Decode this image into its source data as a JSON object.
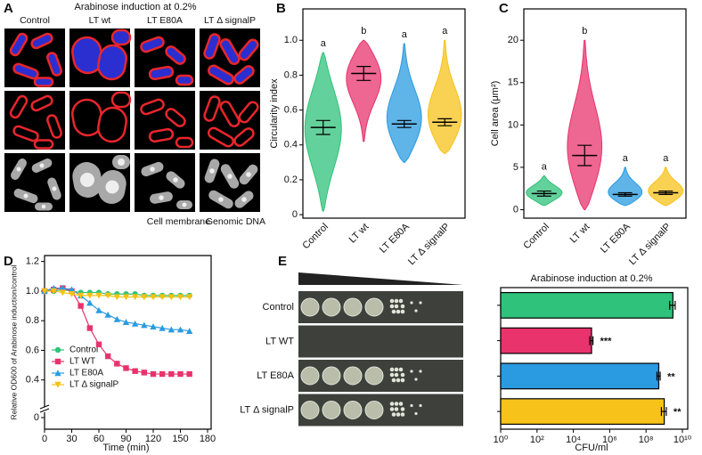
{
  "panel_labels": [
    "A",
    "B",
    "C",
    "D",
    "E"
  ],
  "figure_a": {
    "title": "Arabinose induction at 0.2%",
    "columns": [
      "Control",
      "LT wt",
      "LT E80A",
      "LT Δ signalP"
    ],
    "legend": [
      {
        "name": "Cell membrane",
        "color": "#e8262c"
      },
      {
        "name": "Genomic DNA",
        "color": "#2b2fd0"
      }
    ]
  },
  "chart_data": [
    {
      "type": "violin",
      "y_label": "Circularity index",
      "categories": [
        "Control",
        "LT wt",
        "LT E80A",
        "LT Δ signalP"
      ],
      "colors": [
        "#2fc27a",
        "#e8336d",
        "#2a9be0",
        "#f7c21a"
      ],
      "values": [
        0.5,
        0.81,
        0.52,
        0.53
      ],
      "errors": [
        0.04,
        0.04,
        0.02,
        0.02
      ],
      "min": [
        0.02,
        0.42,
        0.3,
        0.35
      ],
      "max": [
        0.93,
        1.0,
        0.98,
        1.0
      ],
      "letters": [
        "a",
        "b",
        "a",
        "a"
      ],
      "ylim": [
        -0.02,
        1.18
      ],
      "yticks": [
        0,
        0.2,
        0.4,
        0.6,
        0.8,
        {
          "value": 1,
          "label": "1.0"
        }
      ]
    },
    {
      "type": "violin",
      "y_label": "Cell area (μm²)",
      "categories": [
        "Control",
        "LT wt",
        "LT E80A",
        "LT Δ signalP"
      ],
      "colors": [
        "#2fc27a",
        "#e8336d",
        "#2a9be0",
        "#f7c21a"
      ],
      "values": [
        1.9,
        6.4,
        1.8,
        2.0
      ],
      "errors": [
        0.3,
        1.2,
        0.2,
        0.2
      ],
      "min": [
        0.5,
        0,
        0.5,
        0.5
      ],
      "max": [
        4,
        20,
        5,
        5
      ],
      "letters": [
        "a",
        "b",
        "a",
        "a"
      ],
      "ylim": [
        -1,
        23.7
      ],
      "yticks": [
        0,
        5,
        10,
        15,
        20
      ]
    },
    {
      "type": "line",
      "x_label": "Time (min)",
      "y_label": "Relative OD600 of Arabinose induction/control",
      "x": [
        0,
        10,
        20,
        30,
        40,
        50,
        60,
        70,
        80,
        90,
        100,
        110,
        120,
        130,
        140,
        150,
        160
      ],
      "series": [
        {
          "name": "Control",
          "color": "#2fc27a",
          "marker": "circle",
          "values": [
            1.0,
            1.0,
            1.01,
            1.0,
            0.99,
            0.99,
            0.99,
            0.98,
            0.98,
            0.98,
            0.98,
            0.97,
            0.97,
            0.97,
            0.97,
            0.97,
            0.97
          ]
        },
        {
          "name": "LT WT",
          "color": "#e8336d",
          "marker": "square",
          "values": [
            1.0,
            1.01,
            1.02,
            1.0,
            0.9,
            0.75,
            0.64,
            0.56,
            0.51,
            0.48,
            0.46,
            0.45,
            0.44,
            0.44,
            0.44,
            0.44,
            0.44
          ]
        },
        {
          "name": "LT E80A",
          "color": "#2a9be0",
          "marker": "triangle",
          "values": [
            1.0,
            1.02,
            1.02,
            1.01,
            0.97,
            0.92,
            0.87,
            0.84,
            0.81,
            0.79,
            0.78,
            0.77,
            0.76,
            0.75,
            0.74,
            0.74,
            0.73
          ]
        },
        {
          "name": "LT Δ signalP",
          "color": "#f5c211",
          "marker": "triangle-down",
          "values": [
            1.0,
            1.0,
            0.99,
            0.98,
            0.97,
            0.97,
            0.97,
            0.97,
            0.96,
            0.96,
            0.96,
            0.96,
            0.96,
            0.96,
            0.96,
            0.96,
            0.96
          ]
        }
      ],
      "xlim": [
        0,
        180
      ],
      "xticks": [
        0,
        30,
        60,
        90,
        120,
        150,
        180
      ],
      "ylim": [
        0.23,
        1.24
      ],
      "yticks": [
        0,
        0.4,
        0.6,
        0.8,
        {
          "value": 1,
          "label": "1.0"
        },
        1.2
      ],
      "y_break": true,
      "legend": "lower-left"
    },
    {
      "type": "bar",
      "orientation": "horizontal",
      "title": "Arabinose induction at 0.2%",
      "x_label": "CFU/ml",
      "categories": [
        "Control",
        "LT WT",
        "LT E80A",
        "LT Δ signalP"
      ],
      "colors": [
        "#2fc27a",
        "#e8336d",
        "#2a9be0",
        "#f7c21a"
      ],
      "values": [
        3000000000,
        100000,
        500000000,
        1000000000
      ],
      "errors": [
        1000000000,
        20000,
        100000000,
        300000000
      ],
      "annotations": [
        null,
        "***",
        "**",
        "**"
      ],
      "xscale": "log",
      "xlim": [
        1,
        10000000000
      ],
      "xticks": [
        {
          "value": 1,
          "label": "10⁰"
        },
        {
          "value": 100,
          "label": "10²"
        },
        {
          "value": 10000,
          "label": "10⁴"
        },
        {
          "value": 1000000,
          "label": "10⁶"
        },
        {
          "value": 100000000,
          "label": "10⁸"
        },
        {
          "value": 10000000000,
          "label": "10¹⁰"
        }
      ]
    }
  ]
}
